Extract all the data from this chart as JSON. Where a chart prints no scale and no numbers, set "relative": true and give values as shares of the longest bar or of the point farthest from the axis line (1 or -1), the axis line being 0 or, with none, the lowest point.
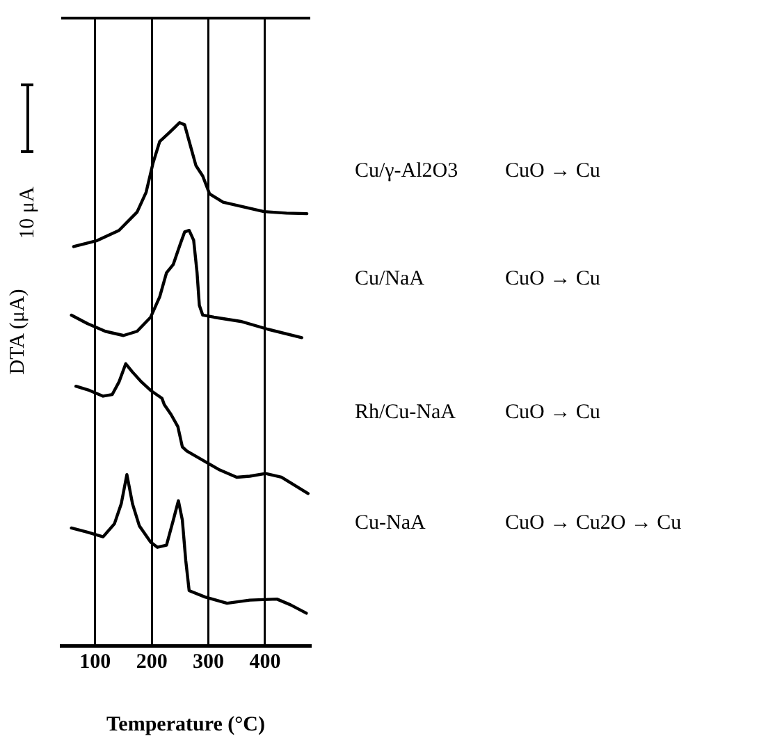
{
  "chart_data": {
    "type": "line",
    "relative": true,
    "xlabel": "Temperature (°C)",
    "ylabel": "DTA (μA)",
    "xlim": [
      40,
      480
    ],
    "xticks": [
      100,
      200,
      300,
      400
    ],
    "grid": "x",
    "legend": false,
    "marker": "none",
    "line_style": "solid",
    "annotations": [
      "CuO → Cu",
      "CuO → Cu",
      "CuO → Cu",
      "CuO → Cu2O → Cu",
      "10 μA"
    ],
    "series": [
      {
        "name": "Cu/γ-Al2O3",
        "color": "#000000",
        "x": [
          62,
          102,
          142,
          174,
          190,
          202,
          214,
          230,
          249,
          258,
          270,
          278,
          290,
          302,
          326,
          358,
          398,
          438,
          474
        ],
        "values": [
          0.763,
          0.774,
          0.794,
          0.829,
          0.867,
          0.922,
          0.964,
          0.98,
          1.0,
          0.996,
          0.949,
          0.918,
          0.898,
          0.864,
          0.848,
          0.84,
          0.83,
          0.827,
          0.826
        ]
      },
      {
        "name": "Cu/NaA",
        "color": "#000000",
        "x": [
          58,
          86,
          118,
          150,
          174,
          198,
          214,
          226,
          238,
          250,
          258,
          266,
          274,
          280,
          284,
          290,
          310,
          357,
          405,
          465
        ],
        "values": [
          0.632,
          0.616,
          0.601,
          0.593,
          0.601,
          0.628,
          0.667,
          0.713,
          0.729,
          0.767,
          0.791,
          0.794,
          0.775,
          0.713,
          0.651,
          0.632,
          0.628,
          0.62,
          0.605,
          0.589
        ]
      },
      {
        "name": "Rh/Cu-NaA",
        "color": "#000000",
        "x": [
          66,
          90,
          114,
          130,
          142,
          154,
          166,
          182,
          198,
          218,
          222,
          234,
          246,
          254,
          262,
          286,
          318,
          350,
          373,
          401,
          429,
          453,
          476
        ],
        "values": [
          0.496,
          0.488,
          0.477,
          0.48,
          0.504,
          0.539,
          0.523,
          0.504,
          0.488,
          0.473,
          0.461,
          0.442,
          0.419,
          0.38,
          0.372,
          0.357,
          0.337,
          0.322,
          0.324,
          0.329,
          0.322,
          0.306,
          0.291
        ]
      },
      {
        "name": "Cu-NaA",
        "color": "#000000",
        "x": [
          58,
          86,
          114,
          134,
          146,
          156,
          166,
          178,
          198,
          210,
          226,
          238,
          247,
          254,
          260,
          266,
          294,
          333,
          373,
          421,
          445,
          473
        ],
        "values": [
          0.225,
          0.217,
          0.208,
          0.233,
          0.271,
          0.327,
          0.271,
          0.229,
          0.198,
          0.188,
          0.192,
          0.24,
          0.277,
          0.24,
          0.163,
          0.105,
          0.093,
          0.081,
          0.087,
          0.089,
          0.078,
          0.062
        ]
      }
    ]
  }
}
